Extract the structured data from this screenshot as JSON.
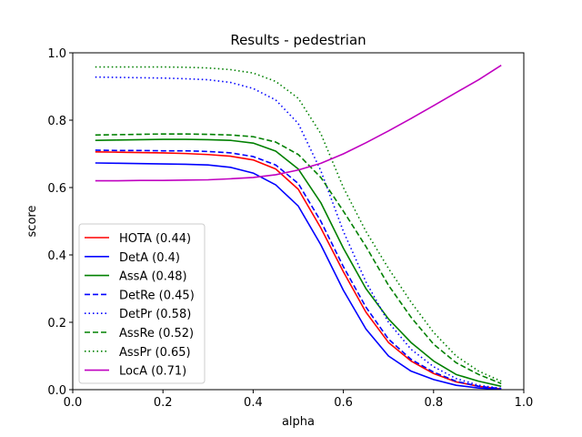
{
  "chart_data": {
    "type": "line",
    "title": "Results - pedestrian",
    "xlabel": "alpha",
    "ylabel": "score",
    "xlim": [
      0.0,
      1.0
    ],
    "ylim": [
      0.0,
      1.0
    ],
    "xticks": [
      0.0,
      0.2,
      0.4,
      0.6,
      0.8,
      1.0
    ],
    "yticks": [
      0.0,
      0.2,
      0.4,
      0.6,
      0.8,
      1.0
    ],
    "xtick_labels": [
      "0.0",
      "0.2",
      "0.4",
      "0.6",
      "0.8",
      "1.0"
    ],
    "ytick_labels": [
      "0.0",
      "0.2",
      "0.4",
      "0.6",
      "0.8",
      "1.0"
    ],
    "grid": false,
    "legend_position": "lower-left",
    "x": [
      0.05,
      0.1,
      0.15,
      0.2,
      0.25,
      0.3,
      0.35,
      0.4,
      0.45,
      0.5,
      0.55,
      0.6,
      0.65,
      0.7,
      0.75,
      0.8,
      0.85,
      0.9,
      0.95
    ],
    "series": [
      {
        "name": "HOTA (0.44)",
        "color": "#ff0000",
        "dash": "solid",
        "values": [
          0.706,
          0.705,
          0.704,
          0.703,
          0.701,
          0.698,
          0.693,
          0.682,
          0.655,
          0.595,
          0.48,
          0.35,
          0.23,
          0.14,
          0.085,
          0.048,
          0.023,
          0.01,
          0.002
        ]
      },
      {
        "name": "DetA (0.4)",
        "color": "#0000ff",
        "dash": "solid",
        "values": [
          0.673,
          0.672,
          0.671,
          0.67,
          0.669,
          0.667,
          0.66,
          0.643,
          0.608,
          0.545,
          0.43,
          0.295,
          0.18,
          0.1,
          0.055,
          0.03,
          0.013,
          0.005,
          0.001
        ]
      },
      {
        "name": "AssA (0.48)",
        "color": "#008000",
        "dash": "solid",
        "values": [
          0.74,
          0.741,
          0.742,
          0.743,
          0.743,
          0.742,
          0.74,
          0.732,
          0.708,
          0.655,
          0.555,
          0.42,
          0.3,
          0.21,
          0.14,
          0.085,
          0.045,
          0.025,
          0.01
        ]
      },
      {
        "name": "DetRe (0.45)",
        "color": "#0000ff",
        "dash": "dashed",
        "values": [
          0.711,
          0.71,
          0.71,
          0.709,
          0.709,
          0.707,
          0.703,
          0.692,
          0.667,
          0.612,
          0.5,
          0.365,
          0.245,
          0.15,
          0.09,
          0.052,
          0.025,
          0.01,
          0.003
        ]
      },
      {
        "name": "DetPr (0.58)",
        "color": "#0000ff",
        "dash": "dotted",
        "values": [
          0.928,
          0.927,
          0.926,
          0.925,
          0.923,
          0.92,
          0.912,
          0.894,
          0.86,
          0.79,
          0.65,
          0.47,
          0.32,
          0.2,
          0.12,
          0.068,
          0.033,
          0.013,
          0.004
        ]
      },
      {
        "name": "AssRe (0.52)",
        "color": "#008000",
        "dash": "dashed",
        "values": [
          0.756,
          0.757,
          0.758,
          0.759,
          0.759,
          0.758,
          0.756,
          0.751,
          0.735,
          0.698,
          0.63,
          0.53,
          0.425,
          0.31,
          0.215,
          0.135,
          0.08,
          0.045,
          0.018
        ]
      },
      {
        "name": "AssPr (0.65)",
        "color": "#008000",
        "dash": "dotted",
        "values": [
          0.958,
          0.958,
          0.958,
          0.958,
          0.957,
          0.955,
          0.95,
          0.94,
          0.915,
          0.865,
          0.76,
          0.6,
          0.47,
          0.36,
          0.26,
          0.17,
          0.1,
          0.055,
          0.025
        ]
      },
      {
        "name": "LocA (0.71)",
        "color": "#c000c0",
        "dash": "solid",
        "values": [
          0.62,
          0.62,
          0.621,
          0.621,
          0.622,
          0.623,
          0.626,
          0.63,
          0.638,
          0.652,
          0.672,
          0.7,
          0.733,
          0.768,
          0.805,
          0.843,
          0.882,
          0.92,
          0.963
        ]
      }
    ]
  }
}
